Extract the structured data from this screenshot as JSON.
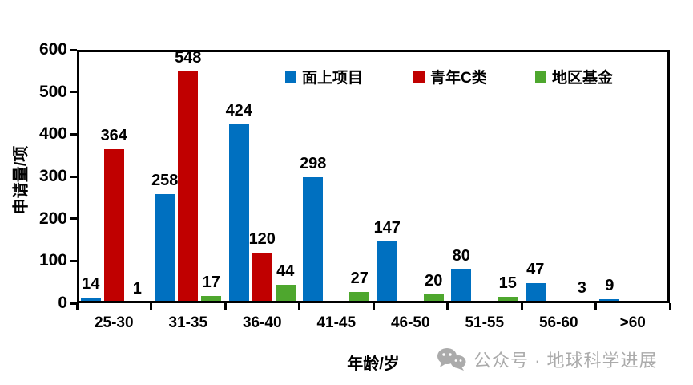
{
  "chart_data": {
    "type": "bar",
    "categories": [
      "25-30",
      "31-35",
      "36-40",
      "41-45",
      "46-50",
      "51-55",
      "56-60",
      ">60"
    ],
    "series": [
      {
        "name": "面上项目",
        "color": "#0070C0",
        "values": [
          14,
          258,
          424,
          298,
          147,
          80,
          47,
          9
        ]
      },
      {
        "name": "青年C类",
        "color": "#C00000",
        "values": [
          364,
          548,
          120,
          null,
          null,
          null,
          null,
          null
        ]
      },
      {
        "name": "地区基金",
        "color": "#4EA72E",
        "values": [
          1,
          17,
          44,
          27,
          20,
          15,
          3,
          null
        ]
      }
    ],
    "xlabel": "年龄/岁",
    "ylabel": "申请量/项",
    "ylim": [
      0,
      600
    ],
    "ytick_step": 100,
    "data_labels": true,
    "grid": false,
    "legend_position": "top-right-inside",
    "axis_color": "#000000"
  },
  "watermark": {
    "icon": "wechat-icon",
    "text": "公众号 · 地球科学进展",
    "color": "#ABABAB"
  }
}
